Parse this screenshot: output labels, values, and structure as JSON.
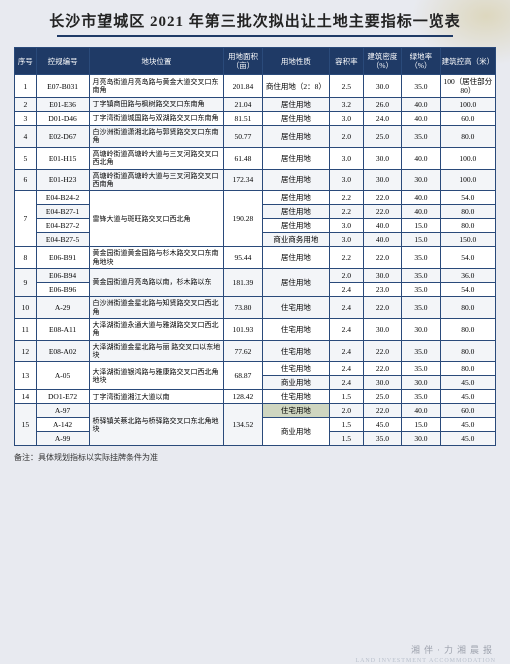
{
  "title": "长沙市望城区 2021 年第三批次拟出让土地主要指标一览表",
  "columns": {
    "seq": "序号",
    "code": "控规编号",
    "location": "地块位置",
    "area": "用地面积（亩）",
    "use": "用地性质",
    "far": "容积率",
    "density": "建筑密度（%）",
    "green": "绿地率（%）",
    "height": "建筑控高（米）"
  },
  "rows": [
    {
      "seq": "1",
      "code": "E07-B031",
      "loc": "月亮岛街道月亮岛路与黄金大道交叉口东南角",
      "area": "201.84",
      "use": "商住用地（2：8）",
      "far": "2.5",
      "dens": "30.0",
      "green": "35.0",
      "height": "100（居住部分80）"
    },
    {
      "seq": "2",
      "code": "E01-E36",
      "loc": "丁字镇商田路与枫树路交叉口东南角",
      "area": "21.04",
      "use": "居住用地",
      "far": "3.2",
      "dens": "26.0",
      "green": "40.0",
      "height": "100.0"
    },
    {
      "seq": "3",
      "code": "D01-D46",
      "loc": "丁字湾街道城国路与双湖路交叉口东南角",
      "area": "81.51",
      "use": "居住用地",
      "far": "3.0",
      "dens": "24.0",
      "green": "40.0",
      "height": "60.0"
    },
    {
      "seq": "4",
      "code": "E02-D67",
      "loc": "白沙洲街道潇湘北路与郭贤路交叉口东南角",
      "area": "50.77",
      "use": "居住用地",
      "far": "2.0",
      "dens": "25.0",
      "green": "35.0",
      "height": "80.0"
    },
    {
      "seq": "5",
      "code": "E01-H15",
      "loc": "高塘岭街道高塘岭大道与三叉河路交叉口西北角",
      "area": "61.48",
      "use": "居住用地",
      "far": "3.0",
      "dens": "30.0",
      "green": "40.0",
      "height": "100.0"
    },
    {
      "seq": "6",
      "code": "E01-H23",
      "loc": "高塘岭街道高塘岭大道与三叉河路交叉口西南角",
      "area": "172.34",
      "use": "居住用地",
      "far": "3.0",
      "dens": "30.0",
      "green": "30.0",
      "height": "100.0"
    }
  ],
  "group7": {
    "seq": "7",
    "loc": "雷锋大道与斑旺路交叉口西北角",
    "area": "190.28",
    "sub": [
      {
        "code": "E04-B24-2",
        "use": "居住用地",
        "far": "2.2",
        "dens": "22.0",
        "green": "40.0",
        "height": "54.0"
      },
      {
        "code": "E04-B27-1",
        "use": "居住用地",
        "far": "2.2",
        "dens": "22.0",
        "green": "40.0",
        "height": "80.0"
      },
      {
        "code": "E04-B27-2",
        "use": "居住用地",
        "far": "3.0",
        "dens": "40.0",
        "green": "15.0",
        "height": "80.0"
      },
      {
        "code": "E04-B27-5",
        "use": "商业商务用地",
        "far": "3.0",
        "dens": "40.0",
        "green": "15.0",
        "height": "150.0"
      }
    ]
  },
  "row8": {
    "seq": "8",
    "code": "E06-B91",
    "loc": "黄金园街道黄金园路与杉木路交叉口东南角地块",
    "area": "95.44",
    "use": "居住用地",
    "far": "2.2",
    "dens": "22.0",
    "green": "35.0",
    "height": "54.0"
  },
  "group9": {
    "seq": "9",
    "loc": "黄金园街道月亮岛路以南，杉木路以东",
    "area": "181.39",
    "sub": [
      {
        "code": "E06-B94",
        "use": "居住用地",
        "far": "2.0",
        "dens": "30.0",
        "green": "35.0",
        "height": "36.0"
      },
      {
        "code": "E06-B96",
        "use": "",
        "far": "2.4",
        "dens": "23.0",
        "green": "35.0",
        "height": "54.0"
      }
    ]
  },
  "rows2": [
    {
      "seq": "10",
      "code": "A-29",
      "loc": "白沙洲街道金星北路与知贤路交叉口西北角",
      "area": "73.80",
      "use": "住宅用地",
      "far": "2.4",
      "dens": "22.0",
      "green": "35.0",
      "height": "80.0"
    },
    {
      "seq": "11",
      "code": "E08-A11",
      "loc": "大泽湖街道永通大道与雅湖路交叉口西北角",
      "area": "101.93",
      "use": "住宅用地",
      "far": "2.4",
      "dens": "30.0",
      "green": "30.0",
      "height": "80.0"
    },
    {
      "seq": "12",
      "code": "E08-A02",
      "loc": "大泽湖街道金星北路与丽  路交叉口以东地块",
      "area": "77.62",
      "use": "住宅用地",
      "far": "2.4",
      "dens": "22.0",
      "green": "35.0",
      "height": "80.0"
    }
  ],
  "group13": {
    "seq": "13",
    "code": "A-05",
    "loc": "大泽湖街道银鸿路与雅康路交叉口西北角地块",
    "area": "68.87",
    "sub": [
      {
        "use": "住宅用地",
        "far": "2.4",
        "dens": "22.0",
        "green": "35.0",
        "height": "80.0"
      },
      {
        "use": "商业用地",
        "far": "2.4",
        "dens": "30.0",
        "green": "30.0",
        "height": "45.0"
      }
    ]
  },
  "row14": {
    "seq": "14",
    "code": "DO1-E72",
    "loc": "丁字湾街道湘江大道以南",
    "area": "128.42",
    "use": "住宅用地",
    "far": "1.5",
    "dens": "25.0",
    "green": "35.0",
    "height": "45.0"
  },
  "group15": {
    "seq": "15",
    "loc": "桥驿镇关蔡北路与桥驿路交叉口东北角地块",
    "area": "134.52",
    "sub": [
      {
        "code": "A-97",
        "use": "住宅用地",
        "far": "2.0",
        "dens": "22.0",
        "green": "40.0",
        "height": "60.0",
        "highlight": true
      },
      {
        "code": "A-142",
        "use": "商业用地",
        "far": "1.5",
        "dens": "45.0",
        "green": "15.0",
        "height": "45.0"
      },
      {
        "code": "A-99",
        "use": "",
        "far": "1.5",
        "dens": "35.0",
        "green": "30.0",
        "height": "45.0"
      }
    ]
  },
  "footnote": "备注：具体规划指标以实际挂牌条件为准",
  "footer": "湘伴·力湘晨报",
  "footer_sub": "LAND INVESTMENT ACCOMMODATION"
}
